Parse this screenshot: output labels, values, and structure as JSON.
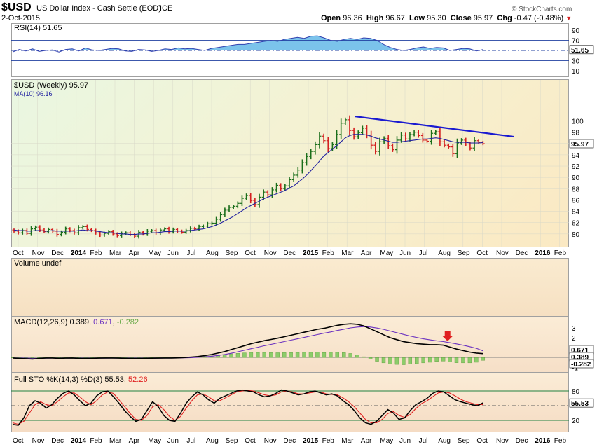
{
  "header": {
    "symbol": "$USD",
    "name": "US Dollar Index - Cash Settle (EOD)",
    "exchange": "ICE",
    "date": "2-Oct-2015",
    "brand": "© StockCharts.com",
    "open_label": "Open",
    "open": "96.36",
    "high_label": "High",
    "high": "96.67",
    "low_label": "Low",
    "low": "95.30",
    "close_label": "Close",
    "close": "95.97",
    "chg_label": "Chg",
    "chg": "-0.47 (-0.48%)",
    "chg_icon": "down-triangle-icon"
  },
  "colors": {
    "up_bar": "#1a6e1a",
    "down_bar": "#d42020",
    "ma_line": "#2020a0",
    "trendline": "#1a1ad0",
    "rsi_line": "#3040b0",
    "rsi_fill": "#5ab4e6",
    "macd_line": "#000000",
    "signal_line": "#6a30c0",
    "histogram": "#8ccc6a",
    "stoch_k": "#000000",
    "stoch_d": "#e02020",
    "arrow": "#e02020"
  },
  "chart_data": [
    {
      "type": "line",
      "panel": "rsi",
      "title": "RSI(14) 51.65",
      "ylim": [
        0,
        100
      ],
      "ticks": [
        10,
        30,
        50,
        70,
        90
      ],
      "levels": [
        70,
        30
      ],
      "last_value_label": "51.65",
      "x_end_date": "2015-10-02",
      "values": [
        47,
        52,
        49,
        53,
        48,
        50,
        51,
        47,
        52,
        53,
        49,
        55,
        51,
        50,
        52,
        54,
        53,
        49,
        48,
        52,
        51,
        48,
        50,
        53,
        52,
        55,
        53,
        54,
        52,
        50,
        54,
        56,
        58,
        60,
        62,
        62,
        64,
        66,
        68,
        70,
        68,
        72,
        74,
        76,
        74,
        78,
        79,
        75,
        70,
        68,
        72,
        74,
        72,
        75,
        74,
        70,
        62,
        56,
        52,
        50,
        52,
        55,
        57,
        54,
        56,
        55,
        50,
        52,
        54,
        53,
        49,
        51.65
      ]
    },
    {
      "type": "bar",
      "panel": "price",
      "title": "$USD (Weekly) 95.97",
      "ma_label": "MA(10) 96.16",
      "ylim": [
        78,
        107
      ],
      "ticks": [
        80,
        82,
        84,
        86,
        88,
        90,
        92,
        94,
        96,
        98,
        100
      ],
      "last_value_label": "95.97",
      "x_end_date": "2015-10-02",
      "ohlc_close": [
        80.5,
        80.2,
        80.6,
        80.1,
        80.9,
        81.2,
        80.7,
        80.4,
        80.8,
        80.5,
        79.9,
        80.3,
        80.9,
        80.6,
        80.2,
        81.1,
        81.3,
        80.8,
        80.6,
        80.2,
        79.8,
        80.1,
        80.4,
        80.0,
        79.7,
        80.1,
        80.2,
        79.9,
        79.6,
        80.3,
        80.0,
        80.5,
        80.6,
        80.2,
        80.7,
        80.9,
        80.4,
        80.8,
        80.5,
        80.3,
        80.6,
        81.0,
        80.9,
        81.3,
        81.4,
        81.8,
        81.9,
        82.6,
        83.4,
        84.2,
        84.7,
        84.9,
        85.4,
        86.3,
        86.8,
        85.9,
        85.2,
        86.5,
        87.4,
        86.9,
        87.8,
        88.6,
        88.0,
        88.5,
        89.6,
        90.4,
        91.3,
        92.6,
        93.7,
        94.6,
        95.8,
        97.3,
        96.5,
        95.1,
        95.8,
        97.6,
        99.6,
        100.2,
        98.3,
        97.2,
        97.9,
        98.7,
        97.5,
        95.7,
        94.6,
        96.3,
        96.9,
        95.6,
        94.9,
        96.6,
        97.5,
        96.8,
        97.6,
        98.0,
        97.4,
        96.6,
        96.4,
        97.8,
        98.1,
        96.3,
        95.7,
        95.4,
        94.2,
        96.1,
        96.6,
        95.9,
        95.2,
        96.5,
        96.2,
        95.97
      ],
      "ma_values": [
        80.7,
        80.6,
        80.6,
        80.5,
        80.5,
        80.6,
        80.6,
        80.5,
        80.5,
        80.6,
        80.5,
        80.5,
        80.5,
        80.5,
        80.5,
        80.6,
        80.7,
        80.6,
        80.6,
        80.5,
        80.4,
        80.3,
        80.2,
        80.2,
        80.1,
        80.0,
        80.0,
        79.9,
        79.9,
        80.0,
        80.0,
        80.1,
        80.2,
        80.2,
        80.3,
        80.4,
        80.4,
        80.5,
        80.5,
        80.5,
        80.5,
        80.6,
        80.7,
        80.8,
        80.9,
        81.1,
        81.3,
        81.6,
        81.9,
        82.3,
        82.7,
        83.1,
        83.6,
        84.1,
        84.6,
        85.0,
        85.4,
        85.8,
        86.2,
        86.5,
        86.8,
        87.1,
        87.4,
        87.7,
        88.1,
        88.5,
        89.1,
        89.7,
        90.4,
        91.2,
        92.0,
        92.9,
        93.8,
        94.4,
        95.0,
        95.6,
        96.3,
        97.0,
        97.4,
        97.6,
        97.6,
        97.6,
        97.5,
        97.3,
        97.0,
        96.8,
        96.6,
        96.4,
        96.2,
        96.2,
        96.3,
        96.4,
        96.5,
        96.6,
        96.7,
        96.8,
        96.8,
        96.9,
        97.0,
        96.9,
        96.7,
        96.5,
        96.3,
        96.2,
        96.2,
        96.2,
        96.1,
        96.1,
        96.1,
        96.16
      ],
      "trendline": [
        {
          "date": "2015-03-13",
          "value": 100.8
        },
        {
          "date": "2015-11-20",
          "value": 97.2
        }
      ]
    },
    {
      "type": "bar",
      "panel": "volume",
      "title": "Volume undef",
      "values": []
    },
    {
      "type": "line",
      "panel": "macd",
      "title": "MACD(12,26,9)",
      "macd_value": "0.389",
      "signal_value": "0.671",
      "hist_value": "-0.282",
      "ylim": [
        -1.4,
        3.7
      ],
      "ticks": [
        -1,
        2,
        3
      ],
      "last_value_labels": [
        "0.671",
        "0.389",
        "-0.282"
      ],
      "x_end_date": "2015-10-02",
      "macd": [
        -0.05,
        -0.1,
        -0.12,
        -0.15,
        -0.1,
        -0.05,
        -0.05,
        -0.08,
        -0.06,
        -0.05,
        -0.08,
        -0.1,
        -0.08,
        -0.06,
        -0.05,
        -0.05,
        -0.06,
        -0.08,
        -0.1,
        -0.09,
        -0.08,
        -0.07,
        -0.06,
        -0.05,
        -0.05,
        -0.03,
        0.0,
        0.05,
        0.1,
        0.2,
        0.3,
        0.45,
        0.6,
        0.8,
        1.0,
        1.2,
        1.4,
        1.55,
        1.7,
        1.82,
        1.95,
        2.1,
        2.25,
        2.4,
        2.55,
        2.7,
        2.85,
        2.95,
        3.1,
        3.25,
        3.35,
        3.4,
        3.35,
        3.2,
        2.9,
        2.6,
        2.3,
        2.0,
        1.8,
        1.6,
        1.5,
        1.4,
        1.35,
        1.3,
        1.3,
        1.25,
        1.05,
        0.85,
        0.7,
        0.55,
        0.45,
        0.389
      ],
      "signal": [
        -0.05,
        -0.06,
        -0.07,
        -0.08,
        -0.08,
        -0.07,
        -0.06,
        -0.06,
        -0.06,
        -0.06,
        -0.06,
        -0.07,
        -0.07,
        -0.07,
        -0.07,
        -0.06,
        -0.06,
        -0.06,
        -0.07,
        -0.07,
        -0.07,
        -0.07,
        -0.07,
        -0.06,
        -0.06,
        -0.05,
        -0.03,
        -0.01,
        0.02,
        0.07,
        0.13,
        0.21,
        0.31,
        0.43,
        0.58,
        0.73,
        0.89,
        1.04,
        1.19,
        1.33,
        1.47,
        1.61,
        1.75,
        1.89,
        2.03,
        2.18,
        2.32,
        2.45,
        2.58,
        2.73,
        2.86,
        2.99,
        3.08,
        3.12,
        3.08,
        2.98,
        2.84,
        2.67,
        2.5,
        2.33,
        2.17,
        2.02,
        1.89,
        1.78,
        1.69,
        1.61,
        1.5,
        1.38,
        1.24,
        1.09,
        0.93,
        0.671
      ],
      "arrow_date": "2015-08-07"
    },
    {
      "type": "line",
      "panel": "stochastic",
      "title": "Full STO %K(14,3) %D(3)",
      "k_value": "55.53",
      "d_value": "52.26",
      "ylim": [
        0,
        100
      ],
      "ticks": [
        20,
        80
      ],
      "levels": [
        80,
        50,
        20
      ],
      "last_value_label": "55.53",
      "x_end_date": "2015-10-02",
      "k": [
        12,
        10,
        25,
        50,
        60,
        55,
        45,
        52,
        65,
        75,
        80,
        72,
        60,
        50,
        55,
        70,
        78,
        80,
        68,
        55,
        40,
        28,
        18,
        22,
        40,
        58,
        48,
        30,
        20,
        18,
        35,
        55,
        68,
        78,
        72,
        62,
        55,
        65,
        70,
        75,
        80,
        82,
        80,
        78,
        72,
        68,
        70,
        75,
        82,
        80,
        76,
        72,
        74,
        78,
        80,
        76,
        72,
        74,
        70,
        60,
        52,
        40,
        25,
        15,
        12,
        18,
        30,
        42,
        35,
        22,
        25,
        40,
        52,
        58,
        65,
        75,
        80,
        78,
        70,
        62,
        58,
        55,
        52,
        50,
        55.53
      ],
      "d": [
        15,
        12,
        18,
        35,
        52,
        58,
        52,
        50,
        58,
        68,
        76,
        76,
        68,
        58,
        52,
        60,
        72,
        78,
        75,
        62,
        48,
        34,
        22,
        20,
        30,
        48,
        52,
        42,
        28,
        20,
        28,
        45,
        60,
        72,
        74,
        68,
        60,
        60,
        66,
        72,
        78,
        80,
        81,
        80,
        76,
        72,
        70,
        72,
        78,
        80,
        78,
        74,
        74,
        76,
        78,
        78,
        74,
        73,
        72,
        66,
        58,
        48,
        35,
        22,
        15,
        15,
        22,
        34,
        38,
        30,
        26,
        32,
        44,
        54,
        60,
        68,
        76,
        78,
        76,
        70,
        63,
        58,
        55,
        52,
        52.26
      ]
    }
  ],
  "x_axis": {
    "labels": [
      "Oct",
      "Nov",
      "Dec",
      "2014",
      "Feb",
      "Mar",
      "Apr",
      "May",
      "Jun",
      "Jul",
      "Aug",
      "Sep",
      "Oct",
      "Nov",
      "Dec",
      "2015",
      "Feb",
      "Mar",
      "Apr",
      "May",
      "Jun",
      "Jul",
      "Aug",
      "Sep",
      "Oct",
      "Nov",
      "Dec",
      "2016",
      "Feb"
    ],
    "year_labels": [
      "2014",
      "2015",
      "2016"
    ]
  }
}
